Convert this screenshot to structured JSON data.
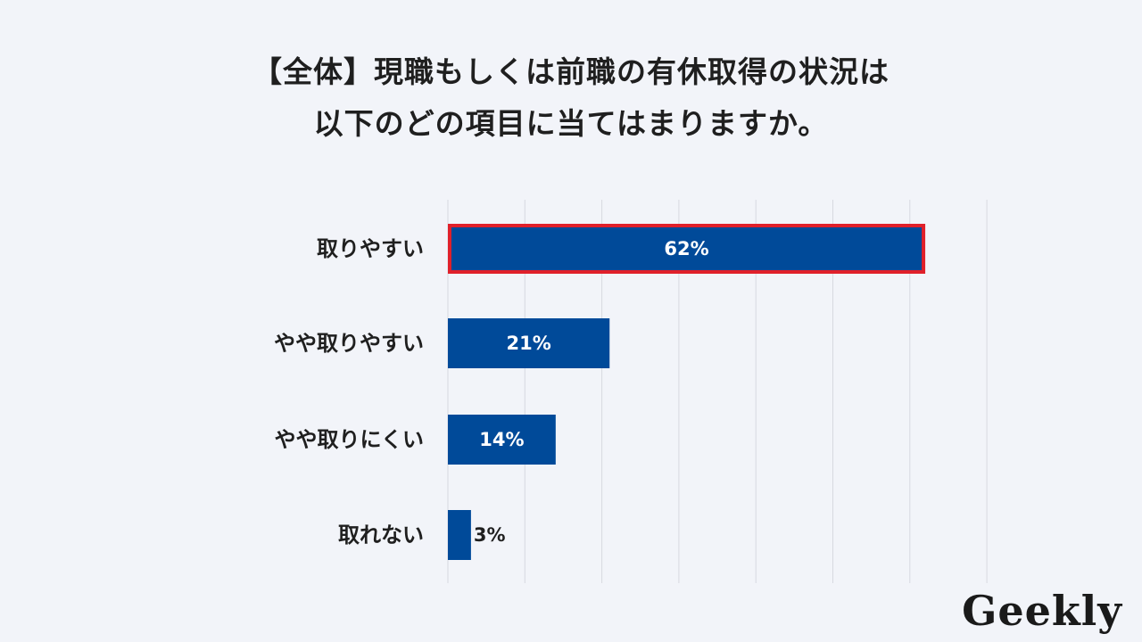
{
  "title": {
    "line1": "【全体】現職もしくは前職の有休取得の状況は",
    "line2": "以下のどの項目に当てはまりますか。"
  },
  "chart_data": {
    "type": "bar",
    "orientation": "horizontal",
    "categories": [
      "取りやすい",
      "やや取りやすい",
      "やや取りにくい",
      "取れない"
    ],
    "values": [
      62,
      21,
      14,
      3
    ],
    "value_labels": [
      "62%",
      "21%",
      "14%",
      "3%"
    ],
    "unit": "%",
    "xlim": [
      0,
      70
    ],
    "grid": true,
    "highlighted_category": "取りやすい",
    "colors": {
      "bar": "#004a99",
      "highlight_border": "#e0202a",
      "grid": "#d7d9e0",
      "label_inside": "#ffffff",
      "label_outside": "#1f1f1f"
    }
  },
  "logo": {
    "text": "Geekly"
  }
}
